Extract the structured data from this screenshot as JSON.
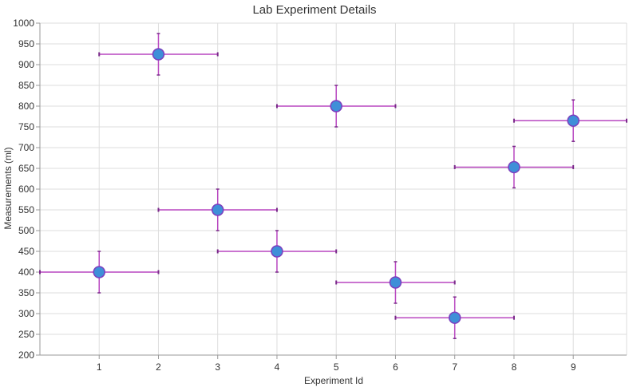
{
  "chart_data": {
    "type": "scatter",
    "title": "Lab Experiment Details",
    "xlabel": "Experiment Id",
    "ylabel": "Measurements (ml)",
    "xlim": [
      0,
      9.9
    ],
    "ylim": [
      200,
      1000
    ],
    "xticks": [
      1,
      2,
      3,
      4,
      5,
      6,
      7,
      8,
      9
    ],
    "yticks": [
      200,
      250,
      300,
      350,
      400,
      450,
      500,
      550,
      600,
      650,
      700,
      750,
      800,
      850,
      900,
      950,
      1000
    ],
    "grid": true,
    "x_error": 1,
    "y_error": 50,
    "points": [
      {
        "x": 1,
        "y": 400
      },
      {
        "x": 2,
        "y": 925
      },
      {
        "x": 3,
        "y": 550
      },
      {
        "x": 4,
        "y": 450
      },
      {
        "x": 5,
        "y": 800
      },
      {
        "x": 6,
        "y": 375
      },
      {
        "x": 7,
        "y": 290
      },
      {
        "x": 8,
        "y": 653
      },
      {
        "x": 9,
        "y": 765
      }
    ],
    "colors": {
      "marker_fill": "#3f8fd8",
      "marker_stroke": "#7b3fbf",
      "error_bar": "#b847c0",
      "grid": "#dddddd",
      "axis": "#999999"
    }
  }
}
